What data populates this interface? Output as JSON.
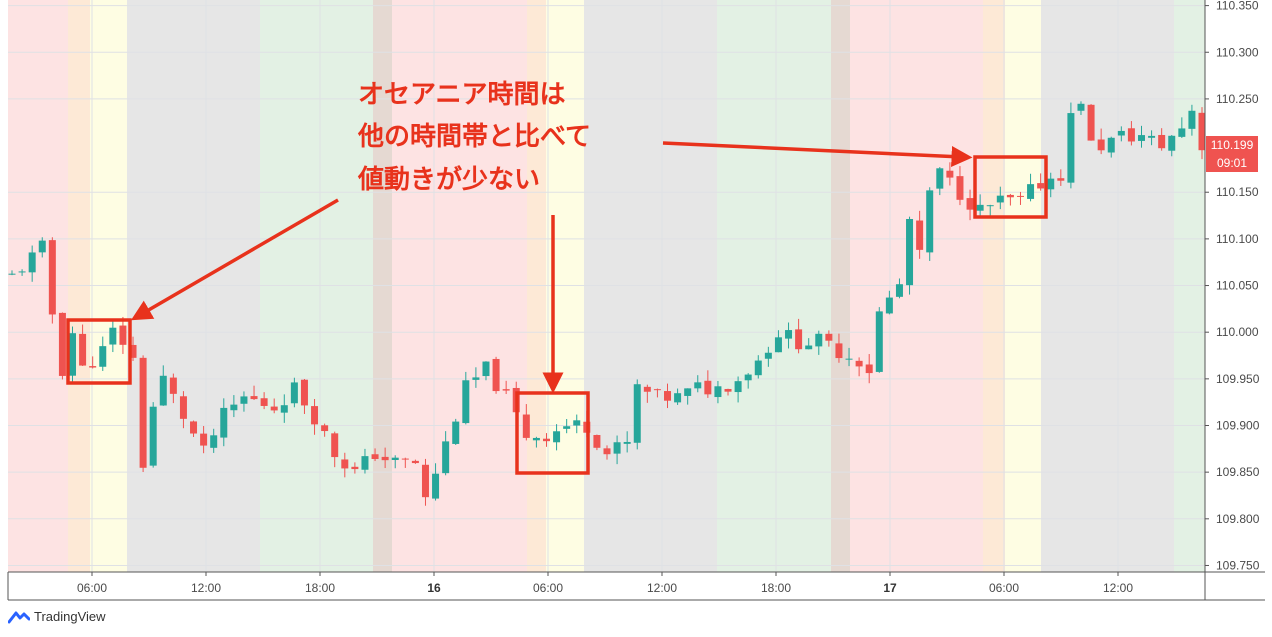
{
  "chart_data": {
    "type": "candlestick",
    "title": "",
    "y_axis": {
      "ticks": [
        "110.350",
        "110.300",
        "110.250",
        "110.150",
        "110.100",
        "110.050",
        "110.000",
        "109.950",
        "109.900",
        "109.850",
        "109.800",
        "109.750"
      ],
      "range": [
        109.743,
        110.356
      ]
    },
    "x_axis": {
      "ticks": [
        {
          "label": "06:00",
          "bold": false
        },
        {
          "label": "12:00",
          "bold": false
        },
        {
          "label": "18:00",
          "bold": false
        },
        {
          "label": "16",
          "bold": true
        },
        {
          "label": "06:00",
          "bold": false
        },
        {
          "label": "12:00",
          "bold": false
        },
        {
          "label": "18:00",
          "bold": false
        },
        {
          "label": "17",
          "bold": true
        },
        {
          "label": "06:00",
          "bold": false
        },
        {
          "label": "12:00",
          "bold": false
        }
      ]
    },
    "session_colors": {
      "pink": "#fde3e3",
      "orange": "#fde9d6",
      "yellow": "#fefde3",
      "gray": "#e6e6e6",
      "green": "#e3f1e4",
      "brown": "#e5d9d2"
    },
    "session_bands": [
      "pink",
      "orange",
      "yellow",
      "gray",
      "green",
      "brown",
      "pink",
      "orange",
      "yellow",
      "gray",
      "green",
      "brown",
      "pink",
      "orange",
      "yellow",
      "gray",
      "green"
    ],
    "candle_colors": {
      "up": "#26a69a",
      "down": "#ef5350"
    },
    "price_path": [
      {
        "t": 0,
        "p": 110.06
      },
      {
        "t": 3,
        "p": 110.09
      },
      {
        "t": 4,
        "p": 110.02
      },
      {
        "t": 5,
        "p": 109.96
      },
      {
        "t": 6,
        "p": 110.0
      },
      {
        "t": 7,
        "p": 109.96
      },
      {
        "t": 9,
        "p": 109.98
      },
      {
        "t": 10,
        "p": 110.0
      },
      {
        "t": 11,
        "p": 109.99
      },
      {
        "t": 12,
        "p": 109.97
      },
      {
        "t": 13,
        "p": 109.86
      },
      {
        "t": 14,
        "p": 109.92
      },
      {
        "t": 15,
        "p": 109.95
      },
      {
        "t": 17,
        "p": 109.91
      },
      {
        "t": 19,
        "p": 109.87
      },
      {
        "t": 21,
        "p": 109.91
      },
      {
        "t": 23,
        "p": 109.93
      },
      {
        "t": 26,
        "p": 109.92
      },
      {
        "t": 28,
        "p": 109.94
      },
      {
        "t": 30,
        "p": 109.91
      },
      {
        "t": 32,
        "p": 109.87
      },
      {
        "t": 34,
        "p": 109.85
      },
      {
        "t": 36,
        "p": 109.87
      },
      {
        "t": 38,
        "p": 109.86
      },
      {
        "t": 40,
        "p": 109.86
      },
      {
        "t": 41,
        "p": 109.82
      },
      {
        "t": 43,
        "p": 109.88
      },
      {
        "t": 45,
        "p": 109.94
      },
      {
        "t": 47,
        "p": 109.96
      },
      {
        "t": 49,
        "p": 109.93
      },
      {
        "t": 51,
        "p": 109.89
      },
      {
        "t": 53,
        "p": 109.89
      },
      {
        "t": 55,
        "p": 109.9
      },
      {
        "t": 57,
        "p": 109.9
      },
      {
        "t": 59,
        "p": 109.87
      },
      {
        "t": 61,
        "p": 109.88
      },
      {
        "t": 62,
        "p": 109.94
      },
      {
        "t": 64,
        "p": 109.93
      },
      {
        "t": 66,
        "p": 109.93
      },
      {
        "t": 68,
        "p": 109.94
      },
      {
        "t": 70,
        "p": 109.94
      },
      {
        "t": 72,
        "p": 109.95
      },
      {
        "t": 74,
        "p": 109.97
      },
      {
        "t": 76,
        "p": 110.0
      },
      {
        "t": 78,
        "p": 109.99
      },
      {
        "t": 80,
        "p": 109.99
      },
      {
        "t": 82,
        "p": 109.98
      },
      {
        "t": 84,
        "p": 109.97
      },
      {
        "t": 85,
        "p": 109.96
      },
      {
        "t": 86,
        "p": 110.02
      },
      {
        "t": 88,
        "p": 110.05
      },
      {
        "t": 89,
        "p": 110.12
      },
      {
        "t": 90,
        "p": 110.08
      },
      {
        "t": 91,
        "p": 110.15
      },
      {
        "t": 92,
        "p": 110.17
      },
      {
        "t": 94,
        "p": 110.15
      },
      {
        "t": 96,
        "p": 110.13
      },
      {
        "t": 98,
        "p": 110.14
      },
      {
        "t": 100,
        "p": 110.14
      },
      {
        "t": 102,
        "p": 110.16
      },
      {
        "t": 104,
        "p": 110.17
      },
      {
        "t": 105,
        "p": 110.23
      },
      {
        "t": 106,
        "p": 110.25
      },
      {
        "t": 107,
        "p": 110.2
      },
      {
        "t": 108,
        "p": 110.2
      },
      {
        "t": 110,
        "p": 110.21
      },
      {
        "t": 112,
        "p": 110.21
      },
      {
        "t": 114,
        "p": 110.2
      },
      {
        "t": 116,
        "p": 110.22
      },
      {
        "t": 117,
        "p": 110.24
      },
      {
        "t": 118,
        "p": 110.2
      }
    ],
    "current_price": {
      "value": "110.199",
      "time_label": "09:01",
      "color": "#ef5350"
    },
    "annotation": {
      "lines": [
        "オセアニア時間は",
        "他の時間帯と比べて",
        "値動きが少ない"
      ],
      "color": "#e8321c"
    }
  },
  "footer": {
    "brand": "TradingView",
    "brand_color": "#2962ff"
  }
}
